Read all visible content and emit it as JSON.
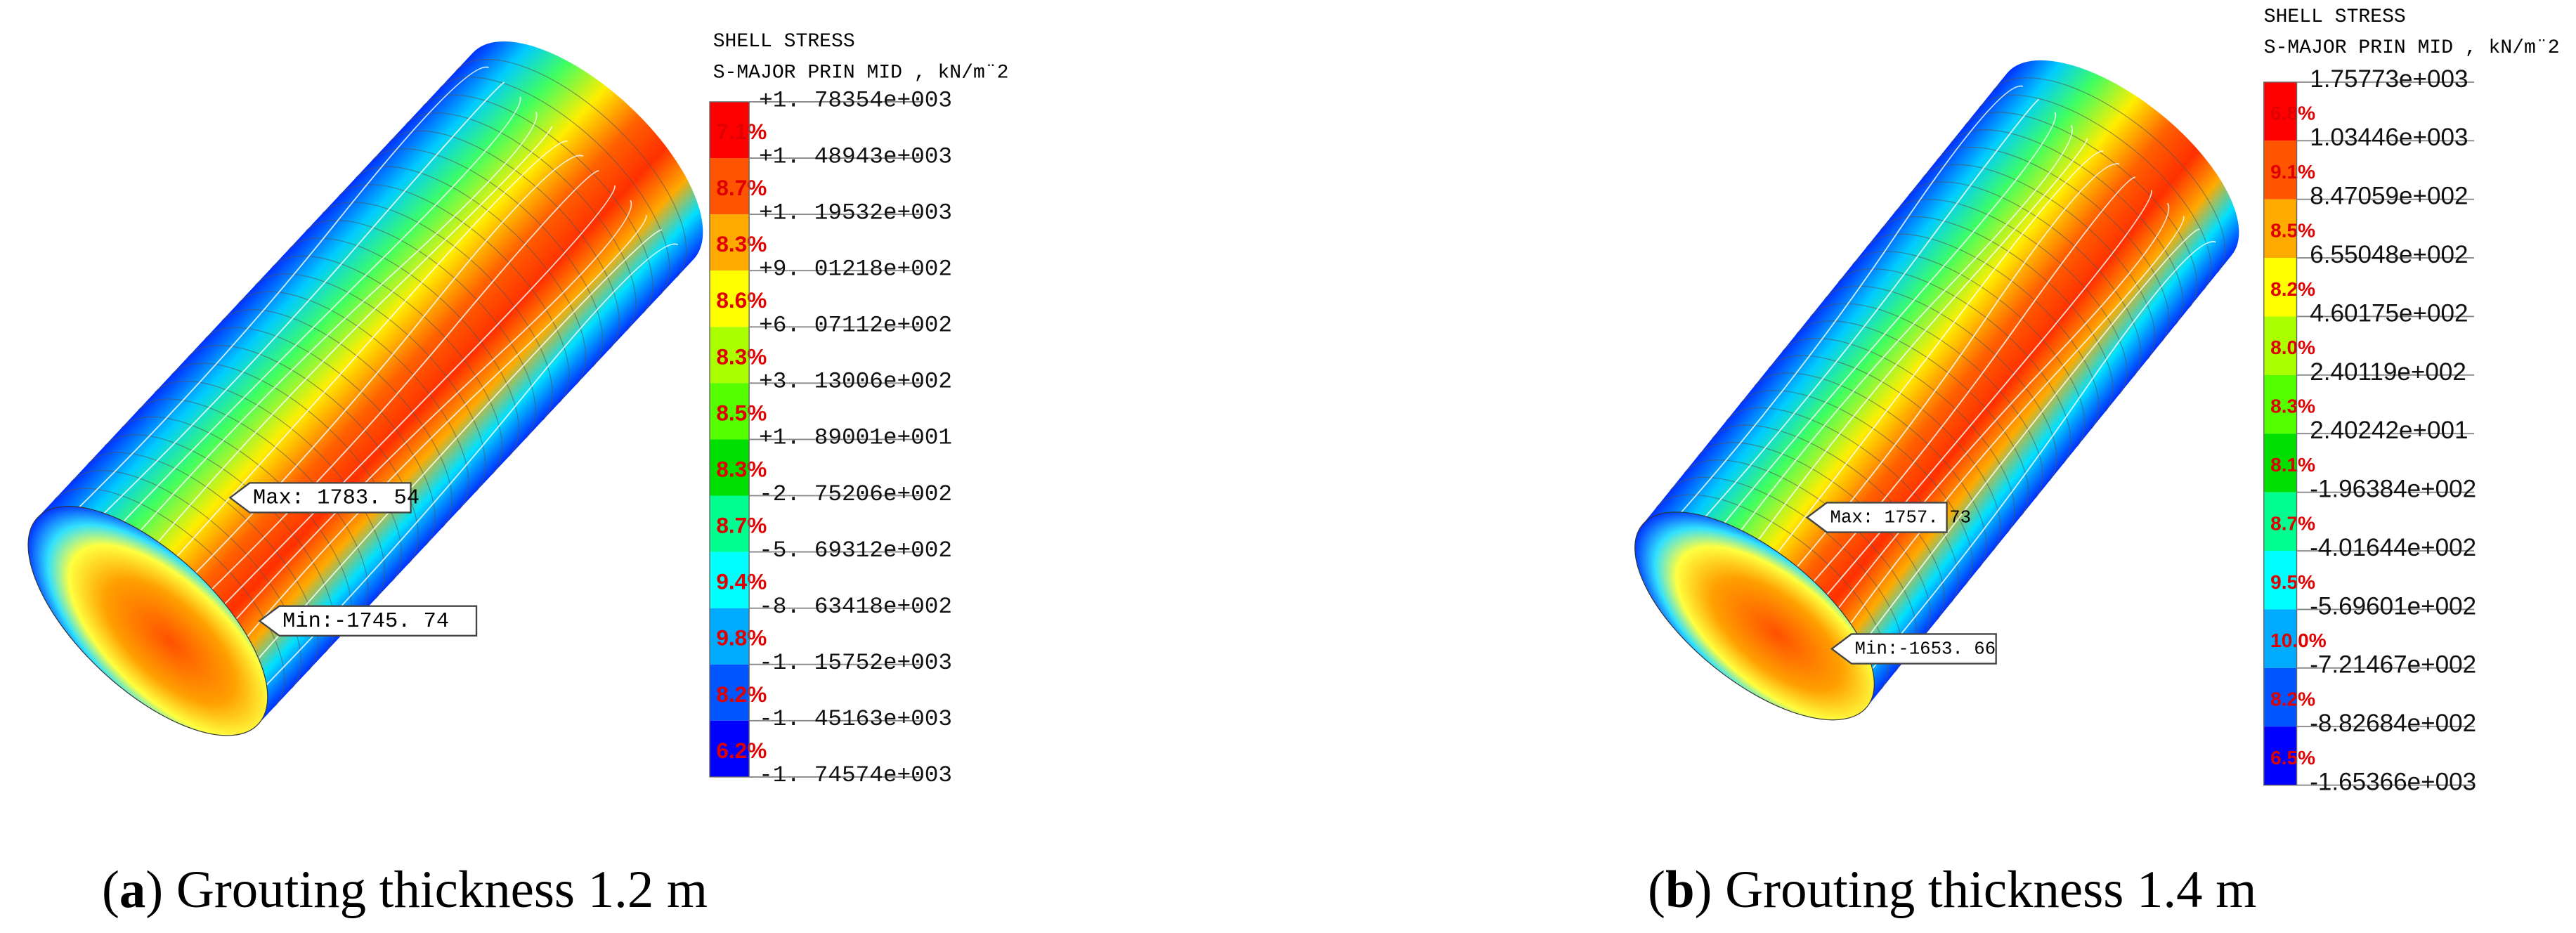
{
  "panels": [
    {
      "legend": {
        "title": "SHELL STRESS",
        "subtitle": "S-MAJOR PRIN MID , kN/m¨2",
        "labels": [
          "+1. 78354e+003",
          "+1. 48943e+003",
          "+1. 19532e+003",
          "+9. 01218e+002",
          "+6. 07112e+002",
          "+3. 13006e+002",
          "+1. 89001e+001",
          "-2. 75206e+002",
          "-5. 69312e+002",
          "-8. 63418e+002",
          "-1. 15752e+003",
          "-1. 45163e+003",
          "-1. 74574e+003"
        ],
        "percents": [
          "7.1%",
          "8.7%",
          "8.3%",
          "8.6%",
          "8.3%",
          "8.5%",
          "8.3%",
          "8.7%",
          "9.4%",
          "9.8%",
          "8.2%",
          "6.2%"
        ]
      },
      "max_label": "Max: 1783. 54",
      "min_label": "Min:-1745. 74",
      "caption": {
        "open": "(",
        "label": "a",
        "text": ") Grouting thickness 1.2 m"
      }
    },
    {
      "legend": {
        "title": "SHELL STRESS",
        "subtitle": "S-MAJOR PRIN MID , kN/m¨2",
        "labels": [
          "1.75773e+003",
          "1.03446e+003",
          "8.47059e+002",
          "6.55048e+002",
          "4.60175e+002",
          "2.40119e+002",
          "2.40242e+001",
          "-1.96384e+002",
          "-4.01644e+002",
          "-5.69601e+002",
          "-7.21467e+002",
          "-8.82684e+002",
          "-1.65366e+003"
        ],
        "percents": [
          "6.8%",
          "9.1%",
          "8.5%",
          "8.2%",
          "8.0%",
          "8.3%",
          "8.1%",
          "8.7%",
          "9.5%",
          "10.0%",
          "8.2%",
          "6.5%"
        ]
      },
      "max_label": "Max: 1757. 73",
      "min_label": "Min:-1653. 66",
      "caption": {
        "open": "(",
        "label": "b",
        "text": ") Grouting thickness 1.4 m"
      }
    }
  ]
}
